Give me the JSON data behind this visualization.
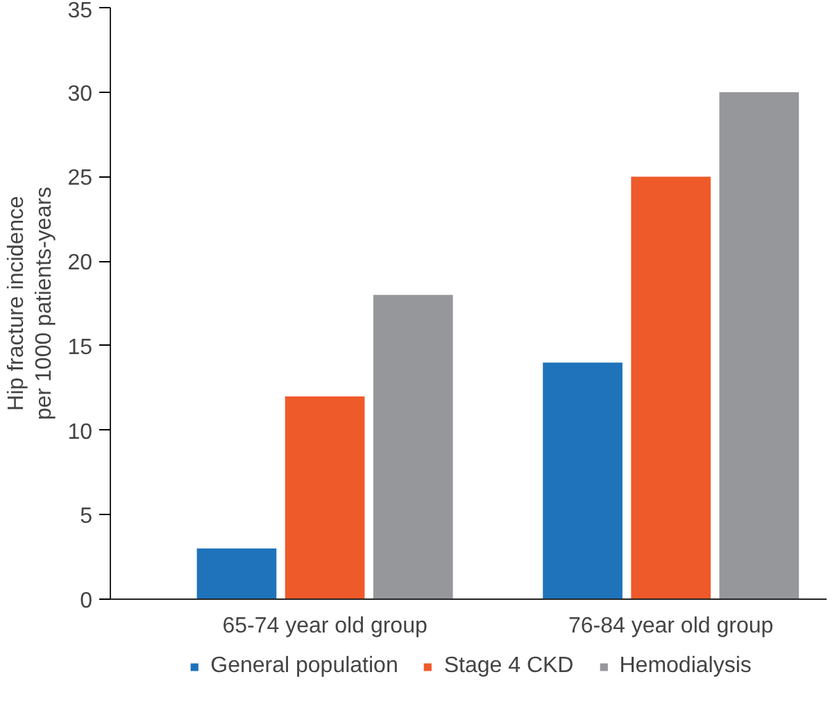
{
  "chart_data": {
    "type": "bar",
    "ylabel": "Hip fracture incidence\nper 1000 patients-years",
    "categories": [
      "65-74 year old group",
      "76-84 year old group"
    ],
    "series": [
      {
        "name": "General population",
        "color": "#1f73bb",
        "values": [
          3,
          14
        ]
      },
      {
        "name": "Stage 4 CKD",
        "color": "#ef5a2a",
        "values": [
          12,
          25
        ]
      },
      {
        "name": "Hemodialysis",
        "color": "#96979b",
        "values": [
          18,
          30
        ]
      }
    ],
    "ylim": [
      0,
      35
    ],
    "yticks": [
      0,
      5,
      10,
      15,
      20,
      25,
      30,
      35
    ],
    "grid": false,
    "legend": "bottom"
  }
}
